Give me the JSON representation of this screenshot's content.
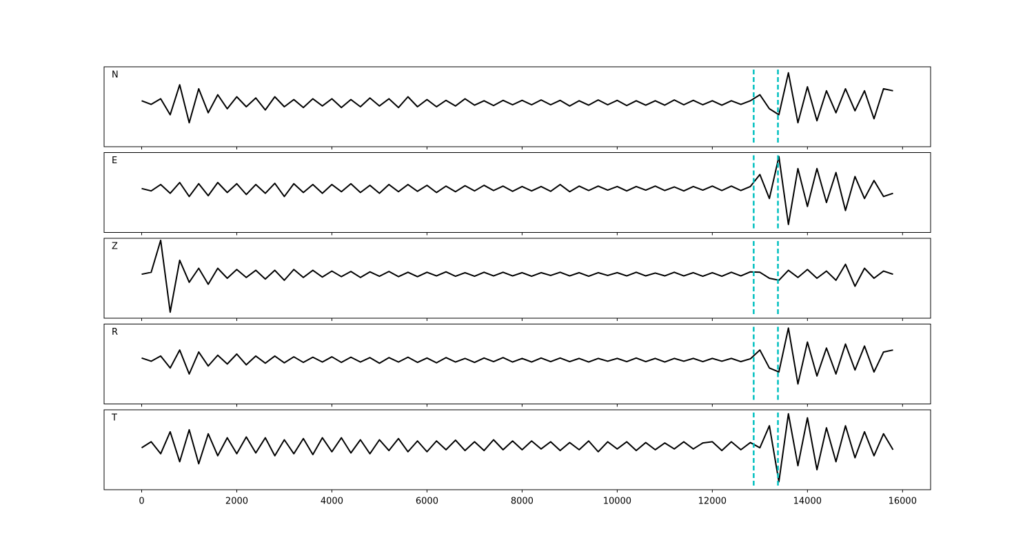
{
  "chart_data": {
    "type": "line",
    "layout": "stacked",
    "x": [
      0,
      200,
      400,
      600,
      800,
      1000,
      1200,
      1400,
      1600,
      1800,
      2000,
      2200,
      2400,
      2600,
      2800,
      3000,
      3200,
      3400,
      3600,
      3800,
      4000,
      4200,
      4400,
      4600,
      4800,
      5000,
      5200,
      5400,
      5600,
      5800,
      6000,
      6200,
      6400,
      6600,
      6800,
      7000,
      7200,
      7400,
      7600,
      7800,
      8000,
      8200,
      8400,
      8600,
      8800,
      9000,
      9200,
      9400,
      9600,
      9800,
      10000,
      10200,
      10400,
      10600,
      10800,
      11000,
      11200,
      11400,
      11600,
      11800,
      12000,
      12200,
      12400,
      12600,
      12800,
      13000,
      13200,
      13400,
      13600,
      13800,
      14000,
      14200,
      14400,
      14600,
      14800,
      15000,
      15200,
      15400,
      15600,
      15800
    ],
    "xlim": [
      -790,
      16590
    ],
    "xticks": [
      0,
      2000,
      4000,
      6000,
      8000,
      10000,
      12000,
      14000,
      16000
    ],
    "ylim": [
      -1.1,
      0.9
    ],
    "markers": {
      "x": [
        12870,
        13380
      ],
      "color": "#00bfbf"
    },
    "series": [
      {
        "name": "N",
        "color": "#000000",
        "values": [
          0.05,
          -0.04,
          0.1,
          -0.3,
          0.45,
          -0.5,
          0.35,
          -0.25,
          0.2,
          -0.15,
          0.15,
          -0.1,
          0.12,
          -0.18,
          0.15,
          -0.1,
          0.08,
          -0.12,
          0.1,
          -0.08,
          0.1,
          -0.12,
          0.08,
          -0.1,
          0.12,
          -0.08,
          0.1,
          -0.12,
          0.15,
          -0.1,
          0.08,
          -0.1,
          0.06,
          -0.08,
          0.1,
          -0.06,
          0.05,
          -0.07,
          0.06,
          -0.05,
          0.06,
          -0.05,
          0.07,
          -0.05,
          0.06,
          -0.08,
          0.05,
          -0.06,
          0.07,
          -0.05,
          0.06,
          -0.07,
          0.05,
          -0.06,
          0.05,
          -0.06,
          0.07,
          -0.05,
          0.06,
          -0.05,
          0.05,
          -0.06,
          0.05,
          -0.04,
          0.05,
          0.2,
          -0.15,
          -0.3,
          0.75,
          -0.5,
          0.4,
          -0.45,
          0.3,
          -0.25,
          0.35,
          -0.2,
          0.3,
          -0.4,
          0.35,
          0.3
        ]
      },
      {
        "name": "E",
        "color": "#000000",
        "values": [
          0.0,
          -0.06,
          0.1,
          -0.12,
          0.15,
          -0.2,
          0.12,
          -0.18,
          0.15,
          -0.1,
          0.12,
          -0.15,
          0.1,
          -0.12,
          0.13,
          -0.2,
          0.12,
          -0.1,
          0.1,
          -0.12,
          0.1,
          -0.08,
          0.12,
          -0.1,
          0.08,
          -0.12,
          0.1,
          -0.08,
          0.1,
          -0.07,
          0.08,
          -0.1,
          0.06,
          -0.08,
          0.07,
          -0.06,
          0.08,
          -0.05,
          0.06,
          -0.07,
          0.05,
          -0.06,
          0.05,
          -0.07,
          0.1,
          -0.08,
          0.06,
          -0.05,
          0.06,
          -0.04,
          0.05,
          -0.06,
          0.05,
          -0.04,
          0.06,
          -0.05,
          0.04,
          -0.06,
          0.05,
          -0.04,
          0.06,
          -0.05,
          0.06,
          -0.05,
          0.05,
          0.35,
          -0.25,
          0.8,
          -0.9,
          0.5,
          -0.45,
          0.5,
          -0.35,
          0.4,
          -0.55,
          0.3,
          -0.25,
          0.2,
          -0.2,
          -0.12
        ]
      },
      {
        "name": "Z",
        "color": "#000000",
        "values": [
          0.0,
          0.05,
          0.85,
          -0.95,
          0.35,
          -0.2,
          0.15,
          -0.25,
          0.15,
          -0.1,
          0.12,
          -0.08,
          0.1,
          -0.12,
          0.1,
          -0.15,
          0.12,
          -0.08,
          0.1,
          -0.07,
          0.08,
          -0.06,
          0.07,
          -0.08,
          0.06,
          -0.05,
          0.07,
          -0.06,
          0.05,
          -0.06,
          0.05,
          -0.04,
          0.06,
          -0.05,
          0.04,
          -0.05,
          0.05,
          -0.04,
          0.05,
          -0.04,
          0.04,
          -0.05,
          0.04,
          -0.03,
          0.05,
          -0.04,
          0.04,
          -0.05,
          0.04,
          -0.03,
          0.04,
          -0.04,
          0.05,
          -0.04,
          0.03,
          -0.04,
          0.05,
          -0.04,
          0.04,
          -0.05,
          0.04,
          -0.05,
          0.05,
          -0.04,
          0.06,
          0.05,
          -0.1,
          -0.15,
          0.1,
          -0.08,
          0.12,
          -0.1,
          0.08,
          -0.15,
          0.25,
          -0.3,
          0.15,
          -0.1,
          0.08,
          0.0
        ]
      },
      {
        "name": "R",
        "color": "#000000",
        "values": [
          0.05,
          -0.03,
          0.1,
          -0.2,
          0.25,
          -0.35,
          0.2,
          -0.15,
          0.12,
          -0.1,
          0.15,
          -0.12,
          0.1,
          -0.08,
          0.1,
          -0.07,
          0.08,
          -0.06,
          0.07,
          -0.05,
          0.08,
          -0.06,
          0.07,
          -0.05,
          0.06,
          -0.08,
          0.06,
          -0.05,
          0.07,
          -0.06,
          0.05,
          -0.07,
          0.06,
          -0.05,
          0.04,
          -0.06,
          0.05,
          -0.04,
          0.06,
          -0.05,
          0.04,
          -0.05,
          0.05,
          -0.04,
          0.05,
          -0.04,
          0.04,
          -0.05,
          0.04,
          -0.03,
          0.04,
          -0.04,
          0.05,
          -0.04,
          0.04,
          -0.05,
          0.04,
          -0.03,
          0.04,
          -0.04,
          0.04,
          -0.03,
          0.04,
          -0.04,
          0.03,
          0.25,
          -0.2,
          -0.3,
          0.8,
          -0.6,
          0.45,
          -0.4,
          0.3,
          -0.35,
          0.4,
          -0.25,
          0.35,
          -0.3,
          0.2,
          0.25
        ]
      },
      {
        "name": "T",
        "color": "#000000",
        "values": [
          -0.05,
          0.1,
          -0.2,
          0.35,
          -0.4,
          0.4,
          -0.45,
          0.3,
          -0.25,
          0.2,
          -0.2,
          0.22,
          -0.18,
          0.2,
          -0.25,
          0.15,
          -0.2,
          0.18,
          -0.22,
          0.2,
          -0.15,
          0.2,
          -0.18,
          0.15,
          -0.2,
          0.15,
          -0.12,
          0.18,
          -0.15,
          0.12,
          -0.15,
          0.12,
          -0.1,
          0.14,
          -0.12,
          0.1,
          -0.12,
          0.15,
          -0.1,
          0.12,
          -0.1,
          0.12,
          -0.08,
          0.1,
          -0.12,
          0.08,
          -0.1,
          0.12,
          -0.15,
          0.1,
          -0.08,
          0.1,
          -0.12,
          0.08,
          -0.1,
          0.07,
          -0.08,
          0.1,
          -0.08,
          0.07,
          0.1,
          -0.12,
          0.1,
          -0.1,
          0.08,
          -0.05,
          0.5,
          -0.9,
          0.8,
          -0.5,
          0.7,
          -0.6,
          0.45,
          -0.4,
          0.5,
          -0.3,
          0.35,
          -0.25,
          0.3,
          -0.1
        ]
      }
    ]
  }
}
